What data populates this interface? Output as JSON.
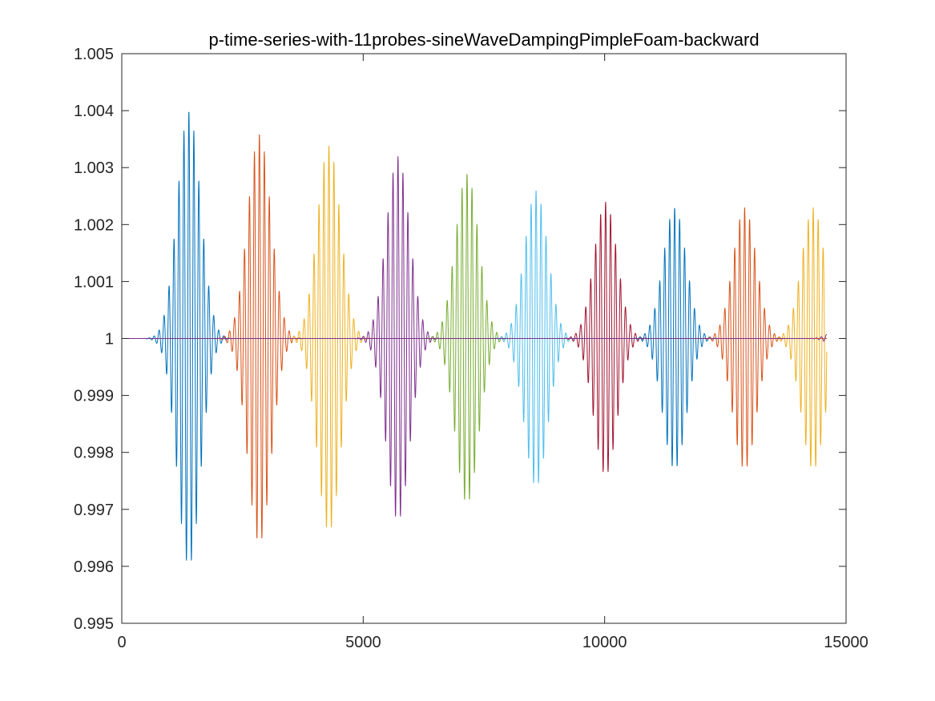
{
  "chart_data": {
    "type": "line",
    "title": "p-time-series-with-11probes-sineWaveDampingPimpleFoam-backward",
    "xlabel": "",
    "ylabel": "",
    "xlim": [
      0,
      15000
    ],
    "ylim": [
      0.995,
      1.005
    ],
    "xticks": [
      0,
      5000,
      10000,
      15000
    ],
    "xtick_labels": [
      "0",
      "5000",
      "10000",
      "15000"
    ],
    "yticks": [
      0.995,
      0.996,
      0.997,
      0.998,
      0.999,
      1,
      1.001,
      1.002,
      1.003,
      1.004,
      1.005
    ],
    "ytick_labels": [
      "0.995",
      "0.996",
      "0.997",
      "0.998",
      "0.999",
      "1",
      "1.001",
      "1.002",
      "1.003",
      "1.004",
      "1.005"
    ],
    "grid": false,
    "legend": "none",
    "baseline": 1,
    "oscillation_period": 103,
    "x_end": 14600,
    "series": [
      {
        "color": "#0072BD",
        "peak_x": 1390,
        "peak_amplitude": 0.004,
        "width": 340
      },
      {
        "color": "#D95319",
        "peak_x": 2850,
        "peak_amplitude": 0.0036,
        "width": 340
      },
      {
        "color": "#EDB120",
        "peak_x": 4290,
        "peak_amplitude": 0.0034,
        "width": 340
      },
      {
        "color": "#7E2F8E",
        "peak_x": 5720,
        "peak_amplitude": 0.0032,
        "width": 340
      },
      {
        "color": "#77AC30",
        "peak_x": 7150,
        "peak_amplitude": 0.0029,
        "width": 340
      },
      {
        "color": "#4DBEEE",
        "peak_x": 8580,
        "peak_amplitude": 0.0026,
        "width": 340
      },
      {
        "color": "#A2142F",
        "peak_x": 10020,
        "peak_amplitude": 0.0024,
        "width": 340
      },
      {
        "color": "#0072BD",
        "peak_x": 11450,
        "peak_amplitude": 0.0023,
        "width": 340
      },
      {
        "color": "#D95319",
        "peak_x": 12900,
        "peak_amplitude": 0.0023,
        "width": 340
      },
      {
        "color": "#EDB120",
        "peak_x": 14320,
        "peak_amplitude": 0.0023,
        "width": 340
      },
      {
        "color": "#7E2F8E",
        "peak_x": 14900,
        "peak_amplitude": 0.0002,
        "width": 300
      }
    ]
  }
}
